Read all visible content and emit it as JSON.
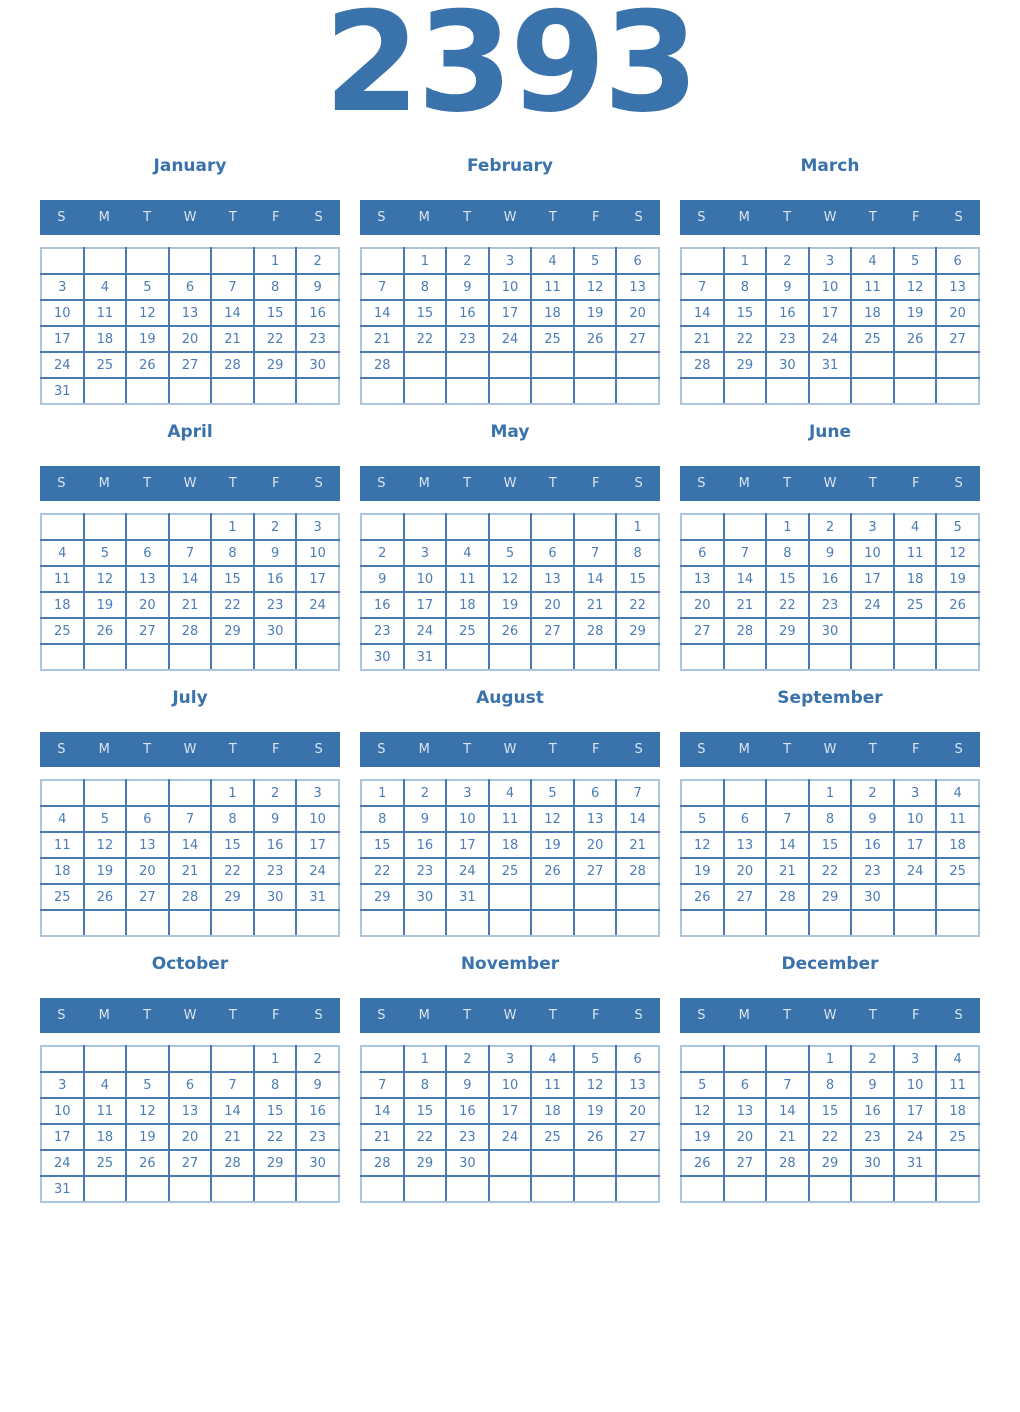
{
  "year_title": "2393",
  "day_headers": [
    "S",
    "M",
    "T",
    "W",
    "T",
    "F",
    "S"
  ],
  "colors": {
    "accent_blue": "#3a72ab",
    "header_bg": "#3a72ab",
    "header_text": "#d9e4f0",
    "cell_border": "#4a7ab2",
    "outer_border": "#aac4de",
    "day_text": "#4b7cb4",
    "page_bg": "#ffffff"
  },
  "months": [
    {
      "name": "January",
      "weeks": [
        [
          "",
          "",
          "",
          "",
          "",
          "1",
          "2"
        ],
        [
          "3",
          "4",
          "5",
          "6",
          "7",
          "8",
          "9"
        ],
        [
          "10",
          "11",
          "12",
          "13",
          "14",
          "15",
          "16"
        ],
        [
          "17",
          "18",
          "19",
          "20",
          "21",
          "22",
          "23"
        ],
        [
          "24",
          "25",
          "26",
          "27",
          "28",
          "29",
          "30"
        ],
        [
          "31",
          "",
          "",
          "",
          "",
          "",
          ""
        ]
      ]
    },
    {
      "name": "February",
      "weeks": [
        [
          "",
          "1",
          "2",
          "3",
          "4",
          "5",
          "6"
        ],
        [
          "7",
          "8",
          "9",
          "10",
          "11",
          "12",
          "13"
        ],
        [
          "14",
          "15",
          "16",
          "17",
          "18",
          "19",
          "20"
        ],
        [
          "21",
          "22",
          "23",
          "24",
          "25",
          "26",
          "27"
        ],
        [
          "28",
          "",
          "",
          "",
          "",
          "",
          ""
        ],
        [
          "",
          "",
          "",
          "",
          "",
          "",
          ""
        ]
      ]
    },
    {
      "name": "March",
      "weeks": [
        [
          "",
          "1",
          "2",
          "3",
          "4",
          "5",
          "6"
        ],
        [
          "7",
          "8",
          "9",
          "10",
          "11",
          "12",
          "13"
        ],
        [
          "14",
          "15",
          "16",
          "17",
          "18",
          "19",
          "20"
        ],
        [
          "21",
          "22",
          "23",
          "24",
          "25",
          "26",
          "27"
        ],
        [
          "28",
          "29",
          "30",
          "31",
          "",
          "",
          ""
        ],
        [
          "",
          "",
          "",
          "",
          "",
          "",
          ""
        ]
      ]
    },
    {
      "name": "April",
      "weeks": [
        [
          "",
          "",
          "",
          "",
          "1",
          "2",
          "3"
        ],
        [
          "4",
          "5",
          "6",
          "7",
          "8",
          "9",
          "10"
        ],
        [
          "11",
          "12",
          "13",
          "14",
          "15",
          "16",
          "17"
        ],
        [
          "18",
          "19",
          "20",
          "21",
          "22",
          "23",
          "24"
        ],
        [
          "25",
          "26",
          "27",
          "28",
          "29",
          "30",
          ""
        ],
        [
          "",
          "",
          "",
          "",
          "",
          "",
          ""
        ]
      ]
    },
    {
      "name": "May",
      "weeks": [
        [
          "",
          "",
          "",
          "",
          "",
          "",
          "1"
        ],
        [
          "2",
          "3",
          "4",
          "5",
          "6",
          "7",
          "8"
        ],
        [
          "9",
          "10",
          "11",
          "12",
          "13",
          "14",
          "15"
        ],
        [
          "16",
          "17",
          "18",
          "19",
          "20",
          "21",
          "22"
        ],
        [
          "23",
          "24",
          "25",
          "26",
          "27",
          "28",
          "29"
        ],
        [
          "30",
          "31",
          "",
          "",
          "",
          "",
          ""
        ]
      ]
    },
    {
      "name": "June",
      "weeks": [
        [
          "",
          "",
          "1",
          "2",
          "3",
          "4",
          "5"
        ],
        [
          "6",
          "7",
          "8",
          "9",
          "10",
          "11",
          "12"
        ],
        [
          "13",
          "14",
          "15",
          "16",
          "17",
          "18",
          "19"
        ],
        [
          "20",
          "21",
          "22",
          "23",
          "24",
          "25",
          "26"
        ],
        [
          "27",
          "28",
          "29",
          "30",
          "",
          "",
          ""
        ],
        [
          "",
          "",
          "",
          "",
          "",
          "",
          ""
        ]
      ]
    },
    {
      "name": "July",
      "weeks": [
        [
          "",
          "",
          "",
          "",
          "1",
          "2",
          "3"
        ],
        [
          "4",
          "5",
          "6",
          "7",
          "8",
          "9",
          "10"
        ],
        [
          "11",
          "12",
          "13",
          "14",
          "15",
          "16",
          "17"
        ],
        [
          "18",
          "19",
          "20",
          "21",
          "22",
          "23",
          "24"
        ],
        [
          "25",
          "26",
          "27",
          "28",
          "29",
          "30",
          "31"
        ],
        [
          "",
          "",
          "",
          "",
          "",
          "",
          ""
        ]
      ]
    },
    {
      "name": "August",
      "weeks": [
        [
          "1",
          "2",
          "3",
          "4",
          "5",
          "6",
          "7"
        ],
        [
          "8",
          "9",
          "10",
          "11",
          "12",
          "13",
          "14"
        ],
        [
          "15",
          "16",
          "17",
          "18",
          "19",
          "20",
          "21"
        ],
        [
          "22",
          "23",
          "24",
          "25",
          "26",
          "27",
          "28"
        ],
        [
          "29",
          "30",
          "31",
          "",
          "",
          "",
          ""
        ],
        [
          "",
          "",
          "",
          "",
          "",
          "",
          ""
        ]
      ]
    },
    {
      "name": "September",
      "weeks": [
        [
          "",
          "",
          "",
          "1",
          "2",
          "3",
          "4"
        ],
        [
          "5",
          "6",
          "7",
          "8",
          "9",
          "10",
          "11"
        ],
        [
          "12",
          "13",
          "14",
          "15",
          "16",
          "17",
          "18"
        ],
        [
          "19",
          "20",
          "21",
          "22",
          "23",
          "24",
          "25"
        ],
        [
          "26",
          "27",
          "28",
          "29",
          "30",
          "",
          ""
        ],
        [
          "",
          "",
          "",
          "",
          "",
          "",
          ""
        ]
      ]
    },
    {
      "name": "October",
      "weeks": [
        [
          "",
          "",
          "",
          "",
          "",
          "1",
          "2"
        ],
        [
          "3",
          "4",
          "5",
          "6",
          "7",
          "8",
          "9"
        ],
        [
          "10",
          "11",
          "12",
          "13",
          "14",
          "15",
          "16"
        ],
        [
          "17",
          "18",
          "19",
          "20",
          "21",
          "22",
          "23"
        ],
        [
          "24",
          "25",
          "26",
          "27",
          "28",
          "29",
          "30"
        ],
        [
          "31",
          "",
          "",
          "",
          "",
          "",
          ""
        ]
      ]
    },
    {
      "name": "November",
      "weeks": [
        [
          "",
          "1",
          "2",
          "3",
          "4",
          "5",
          "6"
        ],
        [
          "7",
          "8",
          "9",
          "10",
          "11",
          "12",
          "13"
        ],
        [
          "14",
          "15",
          "16",
          "17",
          "18",
          "19",
          "20"
        ],
        [
          "21",
          "22",
          "23",
          "24",
          "25",
          "26",
          "27"
        ],
        [
          "28",
          "29",
          "30",
          "",
          "",
          "",
          ""
        ],
        [
          "",
          "",
          "",
          "",
          "",
          "",
          ""
        ]
      ]
    },
    {
      "name": "December",
      "weeks": [
        [
          "",
          "",
          "",
          "1",
          "2",
          "3",
          "4"
        ],
        [
          "5",
          "6",
          "7",
          "8",
          "9",
          "10",
          "11"
        ],
        [
          "12",
          "13",
          "14",
          "15",
          "16",
          "17",
          "18"
        ],
        [
          "19",
          "20",
          "21",
          "22",
          "23",
          "24",
          "25"
        ],
        [
          "26",
          "27",
          "28",
          "29",
          "30",
          "31",
          ""
        ],
        [
          "",
          "",
          "",
          "",
          "",
          "",
          ""
        ]
      ]
    }
  ]
}
